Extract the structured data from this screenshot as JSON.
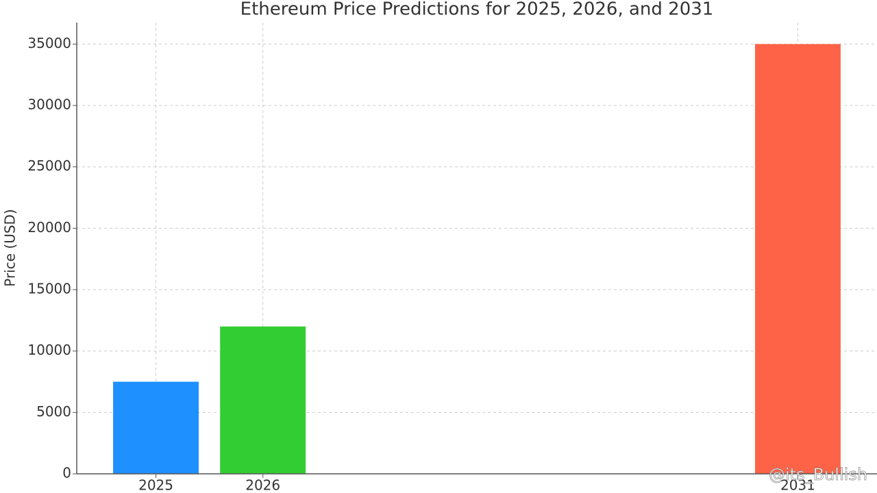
{
  "chart_data": {
    "type": "bar",
    "title": "Ethereum Price Predictions for 2025, 2026, and 2031",
    "y_label": "Price (USD)",
    "x": [
      2025,
      2026,
      2031
    ],
    "values": [
      7500,
      12000,
      35000
    ],
    "colors": [
      "#1e90ff",
      "#32cd32",
      "#ff6347"
    ],
    "xlim": [
      2024.26,
      2031.74
    ],
    "xticks": [
      2025,
      2026,
      2031
    ],
    "ylim": [
      0,
      36750
    ],
    "yticks": [
      0,
      5000,
      10000,
      15000,
      20000,
      25000,
      30000,
      35000
    ],
    "grid": true,
    "watermark": "@its_Bullish"
  }
}
